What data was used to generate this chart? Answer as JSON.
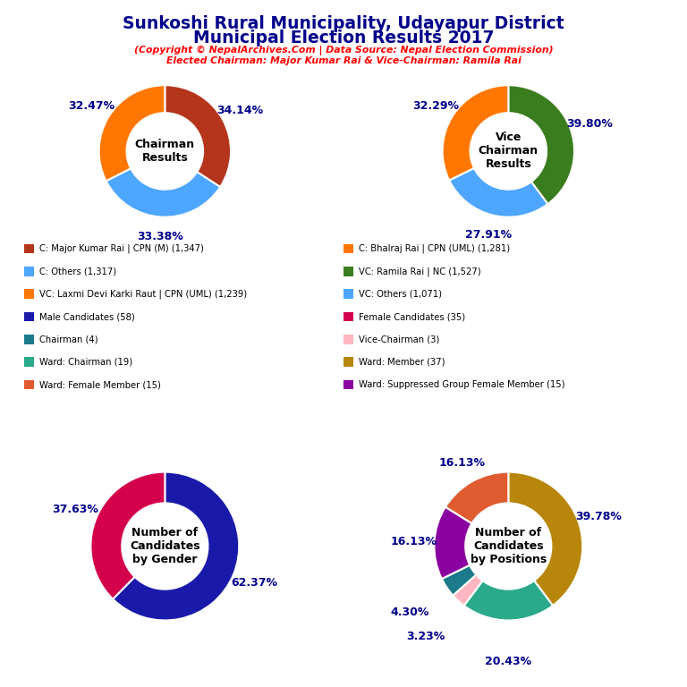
{
  "title_line1": "Sunkoshi Rural Municipality, Udayapur District",
  "title_line2": "Municipal Election Results 2017",
  "subtitle1": "(Copyright © NepalArchives.Com | Data Source: Nepal Election Commission)",
  "subtitle2": "Elected Chairman: Major Kumar Rai & Vice-Chairman: Ramila Rai",
  "chairman_values": [
    34.14,
    33.38,
    32.47
  ],
  "chairman_colors": [
    "#b5341c",
    "#4da6ff",
    "#ff7700"
  ],
  "chairman_labels": [
    "34.14%",
    "33.38%",
    "32.47%"
  ],
  "chairman_center_text": "Chairman\nResults",
  "vc_values": [
    39.8,
    27.91,
    32.29
  ],
  "vc_colors": [
    "#3a7d1e",
    "#4da6ff",
    "#ff7700"
  ],
  "vc_labels": [
    "39.80%",
    "27.91%",
    "32.29%"
  ],
  "vc_center_text": "Vice\nChairman\nResults",
  "gender_values": [
    62.37,
    37.63
  ],
  "gender_colors": [
    "#1a1aaa",
    "#d4004c"
  ],
  "gender_labels": [
    "62.37%",
    "37.63%"
  ],
  "gender_center_text": "Number of\nCandidates\nby Gender",
  "positions_values": [
    39.78,
    20.43,
    3.23,
    4.3,
    16.13,
    16.13
  ],
  "positions_colors": [
    "#b8860b",
    "#2aaa8a",
    "#ffb6c1",
    "#1c7a8a",
    "#8b00a0",
    "#e05c30"
  ],
  "positions_labels": [
    "39.78%",
    "20.43%",
    "3.23%",
    "4.30%",
    "16.13%",
    "16.13%"
  ],
  "positions_center_text": "Number of\nCandidates\nby Positions",
  "legend_items_left": [
    {
      "label": "C: Major Kumar Rai | CPN (M) (1,347)",
      "color": "#b5341c"
    },
    {
      "label": "C: Others (1,317)",
      "color": "#4da6ff"
    },
    {
      "label": "VC: Laxmi Devi Karki Raut | CPN (UML) (1,239)",
      "color": "#ff7700"
    },
    {
      "label": "Male Candidates (58)",
      "color": "#1a1aaa"
    },
    {
      "label": "Chairman (4)",
      "color": "#1c7a8a"
    },
    {
      "label": "Ward: Chairman (19)",
      "color": "#2aaa8a"
    },
    {
      "label": "Ward: Female Member (15)",
      "color": "#e05c30"
    }
  ],
  "legend_items_right": [
    {
      "label": "C: Bhalraj Rai | CPN (UML) (1,281)",
      "color": "#ff7700"
    },
    {
      "label": "VC: Ramila Rai | NC (1,527)",
      "color": "#3a7d1e"
    },
    {
      "label": "VC: Others (1,071)",
      "color": "#4da6ff"
    },
    {
      "label": "Female Candidates (35)",
      "color": "#d4004c"
    },
    {
      "label": "Vice-Chairman (3)",
      "color": "#ffb6c1"
    },
    {
      "label": "Ward: Member (37)",
      "color": "#b8860b"
    },
    {
      "label": "Ward: Suppressed Group Female Member (15)",
      "color": "#8b00a0"
    }
  ]
}
